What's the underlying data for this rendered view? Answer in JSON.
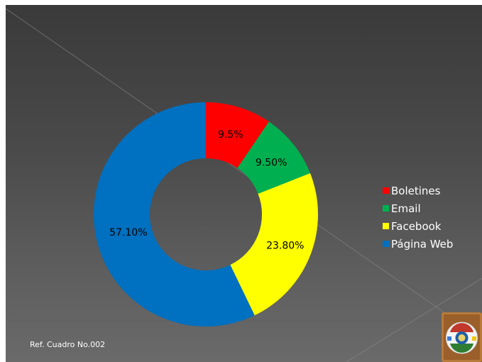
{
  "chart_data": {
    "type": "pie",
    "subtype": "donut",
    "categories": [
      "Boletines",
      "Email",
      "Facebook",
      "Página Web"
    ],
    "values": [
      9.5,
      9.5,
      23.8,
      57.1
    ],
    "labels": [
      "9.5%",
      "9.50%",
      "23.80%",
      "57.10%"
    ],
    "colors": [
      "#ff0000",
      "#00b050",
      "#ffff00",
      "#0070c0"
    ],
    "legend_position": "right",
    "title": ""
  },
  "footer": {
    "reference": "Ref. Cuadro No.002"
  },
  "logo": {
    "icon": "institution-seal-icon"
  },
  "theme": {
    "background": "#4a4a4a",
    "text": "#ffffff"
  }
}
